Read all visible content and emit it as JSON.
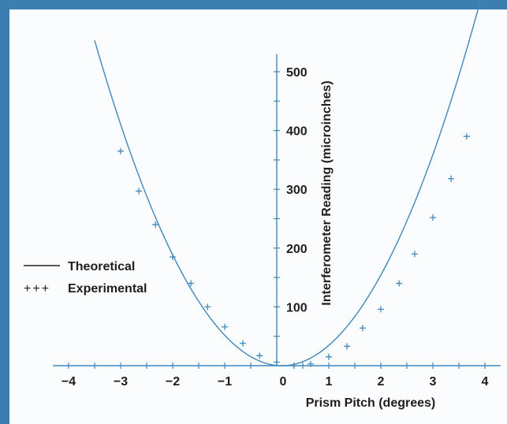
{
  "chart_data": {
    "type": "scatter",
    "title": "",
    "xlabel": "Prism Pitch (degrees)",
    "ylabel": "Interferometer Reading (microinches)",
    "xlim": [
      -4.3,
      4.3
    ],
    "ylim": [
      0,
      530
    ],
    "x_ticks": [
      -4,
      -3,
      -2,
      -1,
      0,
      1,
      2,
      3,
      4
    ],
    "x_tick_labels": [
      "−4",
      "−3",
      "−2",
      "−1",
      "0",
      "1",
      "2",
      "3",
      "4"
    ],
    "y_ticks": [
      100,
      200,
      300,
      400,
      500
    ],
    "y_tick_labels": [
      "100",
      "200",
      "300",
      "400",
      "500"
    ],
    "grid": false,
    "legend_position": "left",
    "colors": {
      "frame": "#3a7fb0",
      "series": "#3f88bf",
      "axis": "#3f88bf",
      "text": "#1e1e1e"
    },
    "series": [
      {
        "name": "Theoretical",
        "kind": "line",
        "vertex_x": 0.1,
        "coef": 42.7,
        "x_range": [
          -3.5,
          4.0
        ]
      },
      {
        "name": "Experimental",
        "kind": "scatter",
        "marker": "+",
        "x": [
          -3.0,
          -2.65,
          -2.33,
          -2.0,
          -1.65,
          -1.33,
          -1.0,
          -0.65,
          -0.33,
          0.0,
          0.33,
          0.65,
          1.0,
          1.35,
          1.65,
          2.0,
          2.35,
          2.65,
          3.0,
          3.35,
          3.65
        ],
        "y": [
          365,
          297,
          240,
          185,
          140,
          100,
          66,
          38,
          17,
          6,
          0,
          3,
          15,
          33,
          64,
          96,
          140,
          190,
          252,
          318,
          390
        ]
      }
    ]
  },
  "legend": {
    "line_label": "Theoretical",
    "marker_symbol": "+++",
    "marker_label": "Experimental"
  }
}
